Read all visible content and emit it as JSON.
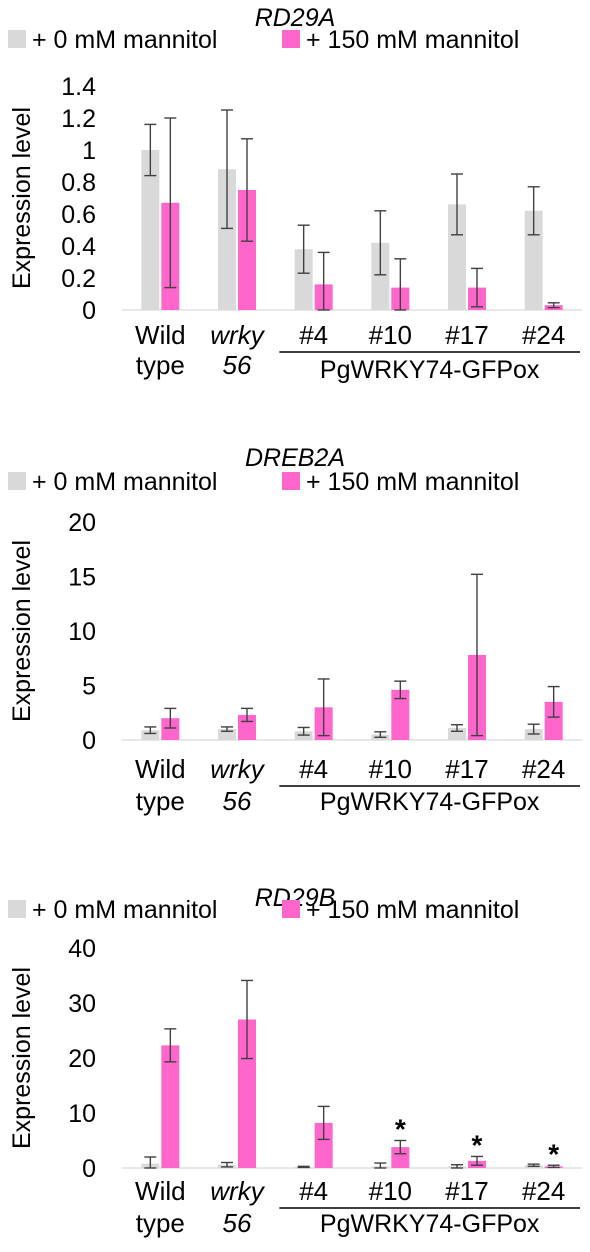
{
  "colors": {
    "control": "#d9d9d9",
    "mannitol": "#ff66cc",
    "error": "#404040",
    "axis": "#000000"
  },
  "legend": {
    "control": "+ 0 mM mannitol",
    "mannitol": "+ 150 mM mannitol"
  },
  "categories": [
    {
      "line1": "Wild",
      "line2": "type",
      "italic": false
    },
    {
      "line1": "wrky",
      "line2": "56",
      "italic": true
    },
    {
      "line1": "#4",
      "line2": "",
      "italic": false
    },
    {
      "line1": "#10",
      "line2": "",
      "italic": false
    },
    {
      "line1": "#17",
      "line2": "",
      "italic": false
    },
    {
      "line1": "#24",
      "line2": "",
      "italic": false
    }
  ],
  "group_label": "PgWRKY74-GFPox",
  "chart_data": [
    {
      "type": "bar",
      "title": "RD29A",
      "ylabel": "Expression level",
      "ylim": [
        0,
        1.4
      ],
      "yticks": [
        "0",
        "0.2",
        "0.4",
        "0.6",
        "0.8",
        "1",
        "1.2",
        "1.4"
      ],
      "ytick_values": [
        0,
        0.2,
        0.4,
        0.6,
        0.8,
        1.0,
        1.2,
        1.4
      ],
      "series": [
        {
          "name": "+ 0 mM mannitol",
          "values": [
            1.0,
            0.88,
            0.38,
            0.42,
            0.66,
            0.62
          ],
          "errors": [
            0.16,
            0.37,
            0.15,
            0.2,
            0.19,
            0.15
          ]
        },
        {
          "name": "+ 150 mM mannitol",
          "values": [
            0.67,
            0.75,
            0.16,
            0.14,
            0.14,
            0.03
          ],
          "errors": [
            0.53,
            0.32,
            0.2,
            0.18,
            0.12,
            0.015
          ]
        }
      ],
      "significance": [
        "",
        "",
        "",
        "",
        "",
        ""
      ]
    },
    {
      "type": "bar",
      "title": "DREB2A",
      "ylabel": "Expression level",
      "ylim": [
        0,
        20
      ],
      "yticks": [
        "0",
        "5",
        "10",
        "15",
        "20"
      ],
      "ytick_values": [
        0,
        5,
        10,
        15,
        20
      ],
      "series": [
        {
          "name": "+ 0 mM mannitol",
          "values": [
            0.9,
            1.0,
            0.8,
            0.5,
            1.1,
            1.0
          ],
          "errors": [
            0.3,
            0.2,
            0.35,
            0.25,
            0.3,
            0.45
          ]
        },
        {
          "name": "+ 150 mM mannitol",
          "values": [
            2.0,
            2.3,
            3.0,
            4.6,
            7.8,
            3.5
          ],
          "errors": [
            0.9,
            0.6,
            2.6,
            0.8,
            7.4,
            1.4
          ]
        }
      ],
      "significance": [
        "",
        "",
        "",
        "",
        "",
        ""
      ]
    },
    {
      "type": "bar",
      "title": "RD29B",
      "ylabel": "Expression level",
      "ylim": [
        0,
        40
      ],
      "yticks": [
        "0",
        "10",
        "20",
        "30",
        "40"
      ],
      "ytick_values": [
        0,
        10,
        20,
        30,
        40
      ],
      "series": [
        {
          "name": "+ 0 mM mannitol",
          "values": [
            0.8,
            0.6,
            0.2,
            0.3,
            0.3,
            0.5
          ],
          "errors": [
            1.2,
            0.4,
            0.1,
            0.6,
            0.3,
            0.2
          ]
        },
        {
          "name": "+ 150 mM mannitol",
          "values": [
            22.3,
            27.0,
            8.2,
            3.8,
            1.3,
            0.3
          ],
          "errors": [
            3.0,
            7.1,
            3.0,
            1.2,
            0.8,
            0.2
          ]
        }
      ],
      "significance": [
        "",
        "",
        "",
        "*",
        "*",
        "*"
      ]
    }
  ]
}
